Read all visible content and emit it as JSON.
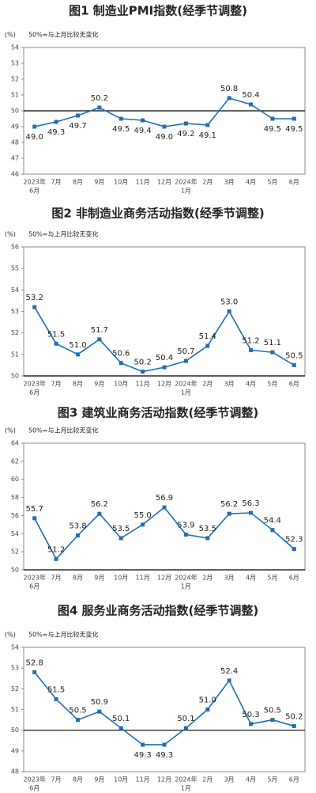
{
  "chart_data": [
    {
      "type": "line",
      "title": "图1 制造业PMI指数(经季节调整)",
      "unit": "(%)",
      "note": "50%=与上月比较无变化",
      "categories": [
        [
          "2023年",
          "6月"
        ],
        [
          "7月"
        ],
        [
          "8月"
        ],
        [
          "9月"
        ],
        [
          "10月"
        ],
        [
          "11月"
        ],
        [
          "12月"
        ],
        [
          "2024年",
          "1月"
        ],
        [
          "2月"
        ],
        [
          "3月"
        ],
        [
          "4月"
        ],
        [
          "5月"
        ],
        [
          "6月"
        ]
      ],
      "values": [
        49.0,
        49.3,
        49.7,
        50.2,
        49.5,
        49.4,
        49.0,
        49.2,
        49.1,
        50.8,
        50.4,
        49.5,
        49.5
      ],
      "value_labels": [
        "49.0",
        "49.3",
        "49.7",
        "50.2",
        "49.5",
        "49.4",
        "49.0",
        "49.2",
        "49.1",
        "50.8",
        "50.4",
        "49.5",
        "49.5"
      ],
      "color": "#1f6db3",
      "reference_line": 50,
      "ylim": [
        46,
        54
      ],
      "yticks": [
        46,
        47,
        48,
        49,
        50,
        51,
        52,
        53,
        54
      ]
    },
    {
      "type": "line",
      "title": "图2 非制造业商务活动指数(经季节调整)",
      "unit": "(%)",
      "note": "50%=与上月比较无变化",
      "categories": [
        [
          "2023年",
          "6月"
        ],
        [
          "7月"
        ],
        [
          "8月"
        ],
        [
          "9月"
        ],
        [
          "10月"
        ],
        [
          "11月"
        ],
        [
          "12月"
        ],
        [
          "2024年",
          "1月"
        ],
        [
          "2月"
        ],
        [
          "3月"
        ],
        [
          "4月"
        ],
        [
          "5月"
        ],
        [
          "6月"
        ]
      ],
      "values": [
        53.2,
        51.5,
        51.0,
        51.7,
        50.6,
        50.2,
        50.4,
        50.7,
        51.4,
        53.0,
        51.2,
        51.1,
        50.5
      ],
      "value_labels": [
        "53.2",
        "51.5",
        "51.0",
        "51.7",
        "50.6",
        "50.2",
        "50.4",
        "50.7",
        "51.4",
        "53.0",
        "51.2",
        "51.1",
        "50.5"
      ],
      "color": "#1f6db3",
      "reference_line": 50,
      "ylim": [
        50,
        56
      ],
      "yticks": [
        50,
        51,
        52,
        53,
        54,
        55,
        56
      ]
    },
    {
      "type": "line",
      "title": "图3 建筑业商务活动指数(经季节调整)",
      "unit": "(%)",
      "note": "50%=与上月比较无变化",
      "categories": [
        [
          "2023年",
          "6月"
        ],
        [
          "7月"
        ],
        [
          "8月"
        ],
        [
          "9月"
        ],
        [
          "10月"
        ],
        [
          "11月"
        ],
        [
          "12月"
        ],
        [
          "2024年",
          "1月"
        ],
        [
          "2月"
        ],
        [
          "3月"
        ],
        [
          "4月"
        ],
        [
          "5月"
        ],
        [
          "6月"
        ]
      ],
      "values": [
        55.7,
        51.2,
        53.8,
        56.2,
        53.5,
        55.0,
        56.9,
        53.9,
        53.5,
        56.2,
        56.3,
        54.4,
        52.3
      ],
      "value_labels": [
        "55.7",
        "51.2",
        "53.8",
        "56.2",
        "53.5",
        "55.0",
        "56.9",
        "53.9",
        "53.5",
        "56.2",
        "56.3",
        "54.4",
        "52.3"
      ],
      "color": "#1f6db3",
      "reference_line": 50,
      "ylim": [
        50,
        64
      ],
      "yticks": [
        50,
        52,
        54,
        56,
        58,
        60,
        62,
        64
      ]
    },
    {
      "type": "line",
      "title": "图4 服务业商务活动指数(经季节调整)",
      "unit": "(%)",
      "note": "50%=与上月比较无变化",
      "categories": [
        [
          "2023年",
          "6月"
        ],
        [
          "7月"
        ],
        [
          "8月"
        ],
        [
          "9月"
        ],
        [
          "10月"
        ],
        [
          "11月"
        ],
        [
          "12月"
        ],
        [
          "2024年",
          "1月"
        ],
        [
          "2月"
        ],
        [
          "3月"
        ],
        [
          "4月"
        ],
        [
          "5月"
        ],
        [
          "6月"
        ]
      ],
      "values": [
        52.8,
        51.5,
        50.5,
        50.9,
        50.1,
        49.3,
        49.3,
        50.1,
        51.0,
        52.4,
        50.3,
        50.5,
        50.2
      ],
      "value_labels": [
        "52.8",
        "51.5",
        "50.5",
        "50.9",
        "50.1",
        "49.3",
        "49.3",
        "50.1",
        "51.0",
        "52.4",
        "50.3",
        "50.5",
        "50.2"
      ],
      "color": "#1f6db3",
      "reference_line": 50,
      "ylim": [
        48,
        54
      ],
      "yticks": [
        48,
        49,
        50,
        51,
        52,
        53,
        54
      ]
    }
  ]
}
